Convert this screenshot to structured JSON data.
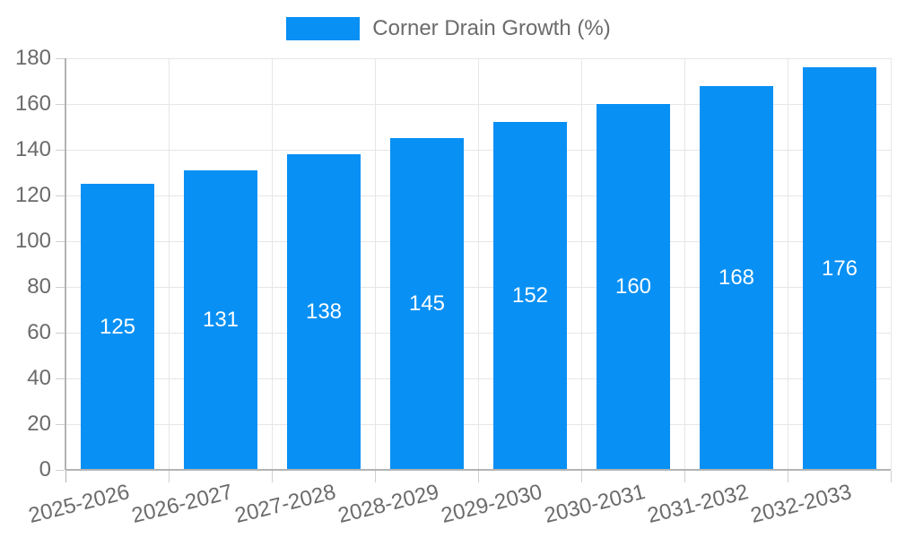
{
  "legend": {
    "position": "top",
    "items": [
      {
        "label": "Corner Drain Growth (%)",
        "color": "#0890f4"
      }
    ]
  },
  "chart_data": {
    "type": "bar",
    "title": "Corner Drain Growth (%)",
    "series_name": "Corner Drain Growth (%)",
    "categories": [
      "2025-2026",
      "2026-2027",
      "2027-2028",
      "2028-2029",
      "2029-2030",
      "2030-2031",
      "2031-2032",
      "2032-2033"
    ],
    "values": [
      125,
      131,
      138,
      145,
      152,
      160,
      168,
      176
    ],
    "xlabel": "",
    "ylabel": "",
    "ylim": [
      0,
      180
    ],
    "ytick_step": 20,
    "yticks": [
      0,
      20,
      40,
      60,
      80,
      100,
      120,
      140,
      160,
      180
    ],
    "grid": true,
    "legend_position": "top",
    "x_label_rotation_deg": -14,
    "data_labels": "centered-in-bar",
    "colors": {
      "bar": "#0890f4",
      "bar_label": "#ffffff",
      "axis_text": "#6b6b6b",
      "grid": "#e6e6e6",
      "axis_line": "#b3b3b3",
      "tick": "#cfcfcf",
      "background": "#ffffff"
    }
  }
}
